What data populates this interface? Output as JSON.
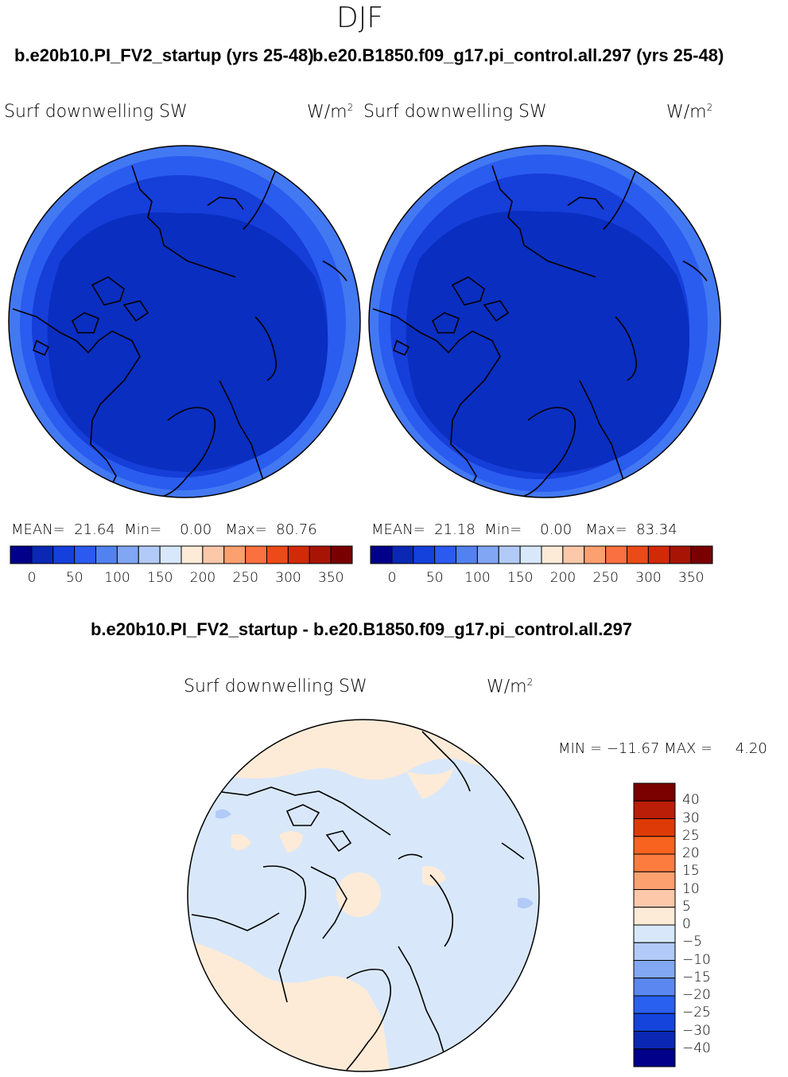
{
  "header": {
    "season": "DJF",
    "left_case": "b.e20b10.PI_FV2_startup (yrs 25-48)",
    "right_case": "b.e20.B1850.f09_g17.pi_control.all.297 (yrs 25-48)",
    "diff_title": "b.e20b10.PI_FV2_startup - b.e20.B1850.f09_g17.pi_control.all.297"
  },
  "panels": {
    "left": {
      "variable": "Surf downwelling SW",
      "units": "W/m",
      "units_sup": "2",
      "mean_label": "MEAN=",
      "mean": "21.64",
      "min_label": "Min=",
      "min": "0.00",
      "max_label": "Max=",
      "max": "80.76"
    },
    "right": {
      "variable": "Surf downwelling SW",
      "units": "W/m",
      "units_sup": "2",
      "mean_label": "MEAN=",
      "mean": "21.18",
      "min_label": "Min=",
      "min": "0.00",
      "max_label": "Max=",
      "max": "83.34"
    },
    "diff": {
      "variable": "Surf downwelling SW",
      "units": "W/m",
      "units_sup": "2",
      "minmax_text": "MIN = −11.67 MAX =     4.20"
    }
  },
  "colorbar_main": {
    "colors": [
      "#00008a",
      "#0a28b4",
      "#1440dc",
      "#2a5af0",
      "#5282f0",
      "#80a6f4",
      "#b2caf8",
      "#d8e8fa",
      "#fdebd8",
      "#fcc8aa",
      "#fca070",
      "#fa7040",
      "#ec4a18",
      "#d22a08",
      "#a81404",
      "#7a0000"
    ],
    "labels": [
      "0",
      "50",
      "100",
      "150",
      "200",
      "250",
      "300",
      "350"
    ]
  },
  "colorbar_diff": {
    "colors": [
      "#7a0000",
      "#ba1e08",
      "#de3a08",
      "#f86420",
      "#fc7c40",
      "#fca070",
      "#fdc8aa",
      "#fdebd8",
      "#d8e8fa",
      "#b2caf8",
      "#82a8f4",
      "#5a88f0",
      "#2a60f0",
      "#1444dc",
      "#0a28b4",
      "#00008a"
    ],
    "labels": [
      "40",
      "30",
      "25",
      "20",
      "15",
      "10",
      "5",
      "0",
      "−5",
      "−10",
      "−15",
      "−20",
      "−25",
      "−30",
      "−40"
    ]
  },
  "map_colors": {
    "core": "#0a2ec0",
    "mid": "#163ed8",
    "outer": "#2a5cf0",
    "rim": "#4278f2",
    "diff_neg": "#d8e8fa",
    "diff_pos": "#fdebd8",
    "diff_neg2": "#b2caf8"
  }
}
